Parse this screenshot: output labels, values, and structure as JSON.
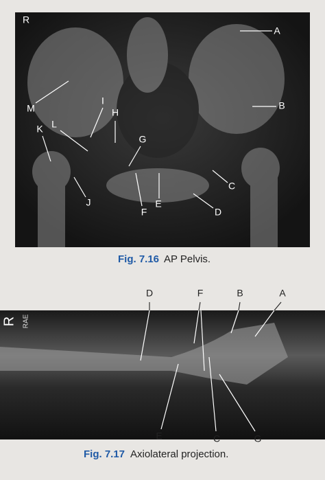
{
  "figures": [
    {
      "marker": "R",
      "labels": {
        "A": "A",
        "B": "B",
        "C": "C",
        "D": "D",
        "E": "E",
        "F": "F",
        "G": "G",
        "H": "H",
        "I": "I",
        "J": "J",
        "K": "K",
        "L": "L",
        "M": "M"
      },
      "caption_number": "Fig. 7.16",
      "caption_text": "AP Pelvis."
    },
    {
      "marker": "R",
      "marker_initials": "RAE",
      "labels": {
        "A": "A",
        "B": "B",
        "C": "C",
        "D": "D",
        "E": "E",
        "F": "F",
        "G": "G"
      },
      "caption_number": "Fig. 7.17",
      "caption_text": "Axiolateral projection."
    }
  ]
}
